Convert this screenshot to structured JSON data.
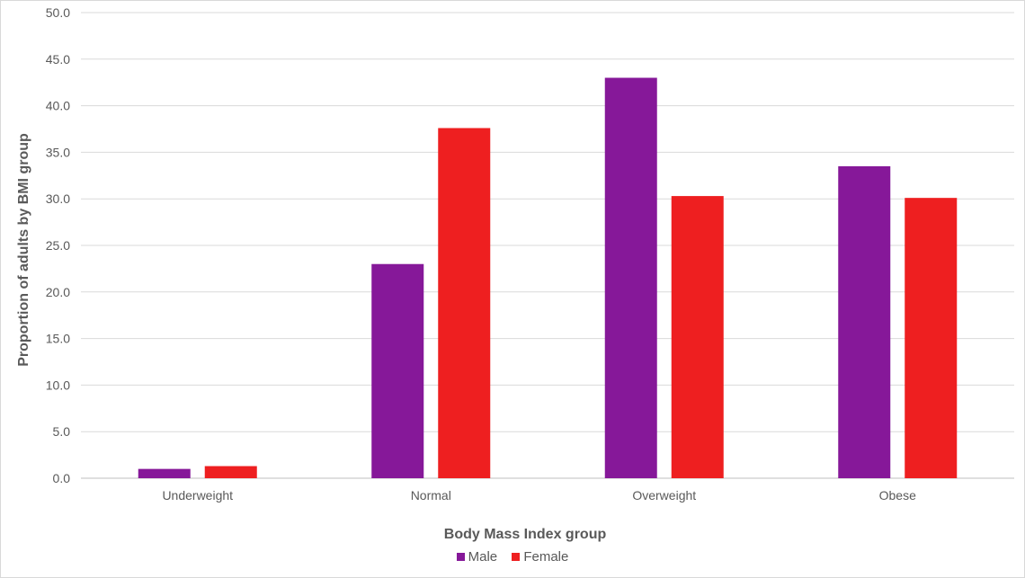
{
  "chart_data": {
    "type": "bar",
    "title": "",
    "xlabel": "Body Mass Index group",
    "ylabel": "Proportion of adults by BMI group",
    "ylim": [
      0,
      50
    ],
    "yticks": [
      "0.0",
      "5.0",
      "10.0",
      "15.0",
      "20.0",
      "25.0",
      "30.0",
      "35.0",
      "40.0",
      "45.0",
      "50.0"
    ],
    "categories": [
      "Underweight",
      "Normal",
      "Overweight",
      "Obese"
    ],
    "series": [
      {
        "name": "Male",
        "color": "#861899",
        "values": [
          1.0,
          23.0,
          43.0,
          33.5
        ]
      },
      {
        "name": "Female",
        "color": "#EE1F20",
        "values": [
          1.3,
          37.6,
          30.3,
          30.1
        ]
      }
    ],
    "grid": true,
    "legend_position": "bottom"
  }
}
